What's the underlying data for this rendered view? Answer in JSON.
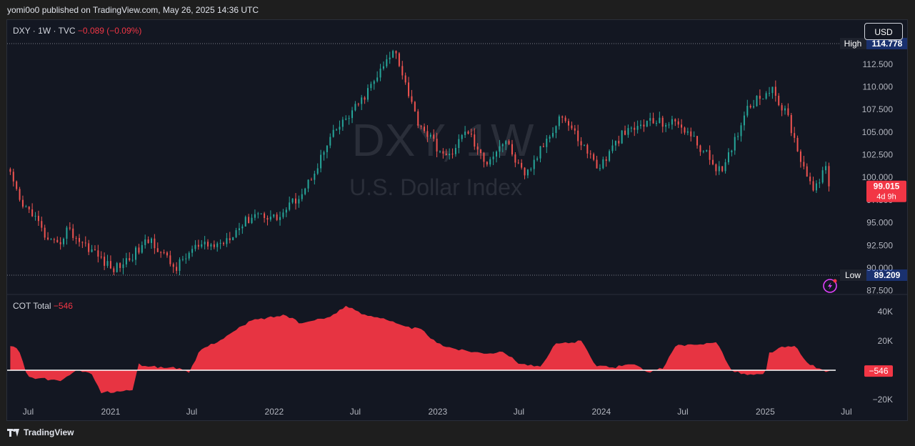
{
  "header": {
    "published": "yomi0o0 published on TradingView.com, May 26, 2025 14:36 UTC"
  },
  "legend": {
    "symbol": "DXY · 1W · TVC",
    "change": "−0.089 (−0.09%)"
  },
  "currency_button": "USD",
  "watermark": {
    "line1": "DXY, 1W",
    "line2": "U.S. Dollar Index"
  },
  "high_label": {
    "tag": "High",
    "value": "114.778"
  },
  "low_label": {
    "tag": "Low",
    "value": "89.209"
  },
  "current_price": {
    "value": "99.015",
    "countdown": "4d 9h"
  },
  "cot": {
    "name": "COT Total",
    "value": "−546"
  },
  "footer": {
    "brand": "TradingView"
  },
  "colors": {
    "up": "#26a69a",
    "down": "#ef5350",
    "cot_fill": "#f23645",
    "background": "#131722"
  },
  "icons": [
    "tradingview-logo-icon",
    "lightning-alert-icon"
  ],
  "chart_data": [
    {
      "type": "candlestick",
      "symbol": "DXY",
      "timeframe": "1W",
      "y_ticks": [
        87.5,
        90,
        92.5,
        95,
        97.5,
        100,
        102.5,
        105,
        107.5,
        110,
        112.5
      ],
      "y_tick_labels": [
        "87.500",
        "90.000",
        "92.500",
        "95.000",
        "97.500",
        "100.000",
        "102.500",
        "105.000",
        "107.500",
        "110.000",
        "112.500"
      ],
      "ylim": [
        87,
        115.8
      ],
      "x_range": [
        "2020-05-15",
        "2025-07-25"
      ],
      "x_ticks": [
        {
          "date": "2020-07-01",
          "label": "Jul"
        },
        {
          "date": "2021-01-01",
          "label": "2021"
        },
        {
          "date": "2021-07-01",
          "label": "Jul"
        },
        {
          "date": "2022-01-01",
          "label": "2022"
        },
        {
          "date": "2022-07-01",
          "label": "Jul"
        },
        {
          "date": "2023-01-01",
          "label": "2023"
        },
        {
          "date": "2023-07-01",
          "label": "Jul"
        },
        {
          "date": "2024-01-01",
          "label": "2024"
        },
        {
          "date": "2024-07-01",
          "label": "Jul"
        },
        {
          "date": "2025-01-01",
          "label": "2025"
        },
        {
          "date": "2025-07-01",
          "label": "Jul"
        }
      ],
      "high": 114.778,
      "low": 89.209,
      "last": 99.015,
      "key_points": [
        {
          "date": "2020-05-22",
          "value": 100.2
        },
        {
          "date": "2020-06-15",
          "value": 96.8
        },
        {
          "date": "2020-07-10",
          "value": 96.2
        },
        {
          "date": "2020-08-15",
          "value": 92.8
        },
        {
          "date": "2020-09-05",
          "value": 92.4
        },
        {
          "date": "2020-09-25",
          "value": 94.3
        },
        {
          "date": "2020-10-20",
          "value": 93.2
        },
        {
          "date": "2020-11-20",
          "value": 92.0
        },
        {
          "date": "2021-01-05",
          "value": 89.8
        },
        {
          "date": "2021-02-05",
          "value": 90.8
        },
        {
          "date": "2021-03-31",
          "value": 93.2
        },
        {
          "date": "2021-05-25",
          "value": 89.9
        },
        {
          "date": "2021-07-05",
          "value": 92.2
        },
        {
          "date": "2021-09-01",
          "value": 92.6
        },
        {
          "date": "2021-11-20",
          "value": 96.1
        },
        {
          "date": "2022-01-10",
          "value": 95.5
        },
        {
          "date": "2022-03-10",
          "value": 98.7
        },
        {
          "date": "2022-05-13",
          "value": 104.8
        },
        {
          "date": "2022-07-14",
          "value": 108.4
        },
        {
          "date": "2022-09-28",
          "value": 114.2
        },
        {
          "date": "2022-11-15",
          "value": 106.4
        },
        {
          "date": "2023-01-20",
          "value": 102.0
        },
        {
          "date": "2023-03-08",
          "value": 105.3
        },
        {
          "date": "2023-04-15",
          "value": 101.5
        },
        {
          "date": "2023-05-31",
          "value": 104.2
        },
        {
          "date": "2023-07-14",
          "value": 99.9
        },
        {
          "date": "2023-10-03",
          "value": 107.0
        },
        {
          "date": "2023-12-27",
          "value": 101.0
        },
        {
          "date": "2024-02-14",
          "value": 104.6
        },
        {
          "date": "2024-04-16",
          "value": 106.2
        },
        {
          "date": "2024-06-26",
          "value": 105.9
        },
        {
          "date": "2024-09-27",
          "value": 100.4
        },
        {
          "date": "2024-11-22",
          "value": 107.9
        },
        {
          "date": "2025-01-13",
          "value": 109.8
        },
        {
          "date": "2025-02-21",
          "value": 106.6
        },
        {
          "date": "2025-03-10",
          "value": 103.6
        },
        {
          "date": "2025-04-21",
          "value": 98.2
        },
        {
          "date": "2025-05-12",
          "value": 101.5
        },
        {
          "date": "2025-05-26",
          "value": 99.015
        }
      ]
    },
    {
      "type": "area",
      "name": "COT Total",
      "y_ticks": [
        -20000,
        0,
        20000,
        40000
      ],
      "y_tick_labels": [
        "−20K",
        "",
        "20K",
        "40K"
      ],
      "ylim": [
        -22000,
        45000
      ],
      "last": -546,
      "last_label": "−546",
      "key_points": [
        {
          "date": "2020-05-22",
          "value": 16000
        },
        {
          "date": "2020-06-08",
          "value": 15000
        },
        {
          "date": "2020-07-01",
          "value": -5000
        },
        {
          "date": "2020-08-10",
          "value": -6000
        },
        {
          "date": "2020-09-10",
          "value": -8000
        },
        {
          "date": "2020-10-15",
          "value": 0
        },
        {
          "date": "2020-11-20",
          "value": -3000
        },
        {
          "date": "2020-12-10",
          "value": -15000
        },
        {
          "date": "2021-01-10",
          "value": -15000
        },
        {
          "date": "2021-02-20",
          "value": -13000
        },
        {
          "date": "2021-03-05",
          "value": 4000
        },
        {
          "date": "2021-04-20",
          "value": 2000
        },
        {
          "date": "2021-05-25",
          "value": 2000
        },
        {
          "date": "2021-06-25",
          "value": -2000
        },
        {
          "date": "2021-07-20",
          "value": 14000
        },
        {
          "date": "2021-09-10",
          "value": 22000
        },
        {
          "date": "2021-11-10",
          "value": 34000
        },
        {
          "date": "2022-01-25",
          "value": 38000
        },
        {
          "date": "2022-03-01",
          "value": 32000
        },
        {
          "date": "2022-05-01",
          "value": 36000
        },
        {
          "date": "2022-06-10",
          "value": 44000
        },
        {
          "date": "2022-07-20",
          "value": 38000
        },
        {
          "date": "2022-09-01",
          "value": 36000
        },
        {
          "date": "2022-10-15",
          "value": 30000
        },
        {
          "date": "2022-11-25",
          "value": 28000
        },
        {
          "date": "2023-01-01",
          "value": 18000
        },
        {
          "date": "2023-02-20",
          "value": 14000
        },
        {
          "date": "2023-04-10",
          "value": 12000
        },
        {
          "date": "2023-06-01",
          "value": 12000
        },
        {
          "date": "2023-07-01",
          "value": 5000
        },
        {
          "date": "2023-08-20",
          "value": 2000
        },
        {
          "date": "2023-09-20",
          "value": 18000
        },
        {
          "date": "2023-11-20",
          "value": 20000
        },
        {
          "date": "2023-12-20",
          "value": 3000
        },
        {
          "date": "2024-02-01",
          "value": 2000
        },
        {
          "date": "2024-03-10",
          "value": 5000
        },
        {
          "date": "2024-04-15",
          "value": -2000
        },
        {
          "date": "2024-05-20",
          "value": 2000
        },
        {
          "date": "2024-06-15",
          "value": 17000
        },
        {
          "date": "2024-08-01",
          "value": 17000
        },
        {
          "date": "2024-09-15",
          "value": 20000
        },
        {
          "date": "2024-10-15",
          "value": 0
        },
        {
          "date": "2024-11-20",
          "value": -3000
        },
        {
          "date": "2025-01-01",
          "value": -3000
        },
        {
          "date": "2025-01-10",
          "value": 12000
        },
        {
          "date": "2025-02-10",
          "value": 16000
        },
        {
          "date": "2025-03-10",
          "value": 16000
        },
        {
          "date": "2025-04-01",
          "value": 6000
        },
        {
          "date": "2025-05-10",
          "value": -500
        },
        {
          "date": "2025-05-26",
          "value": -546
        }
      ]
    }
  ]
}
